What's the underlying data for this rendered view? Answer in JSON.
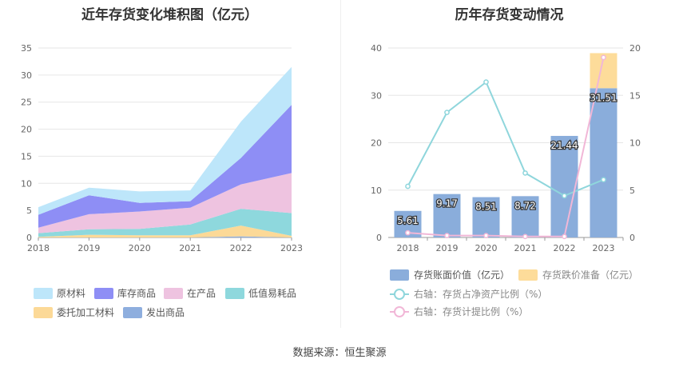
{
  "titles": {
    "left": "近年存货变化堆积图（亿元）",
    "right": "历年存货变动情况"
  },
  "source": "数据来源：恒生聚源",
  "chart_data": [
    {
      "type": "area",
      "stacked": true,
      "title": "近年存货变化堆积图（亿元）",
      "x": [
        "2018",
        "2019",
        "2020",
        "2021",
        "2022",
        "2023"
      ],
      "ylim": [
        0,
        35
      ],
      "yticks": [
        0,
        5,
        10,
        15,
        20,
        25,
        30,
        35
      ],
      "grid": true,
      "legend_position": "bottom",
      "series": [
        {
          "name": "发出商品",
          "color": "#8eaede",
          "values": [
            0,
            0,
            0,
            0,
            0.2,
            0
          ]
        },
        {
          "name": "委托加工材料",
          "color": "#fcd997",
          "values": [
            0.1,
            0.5,
            0.4,
            0.4,
            2.0,
            0.3
          ]
        },
        {
          "name": "低值易耗品",
          "color": "#8ed8dd",
          "values": [
            0.7,
            1.0,
            1.2,
            2.0,
            3.1,
            4.2
          ]
        },
        {
          "name": "在产品",
          "color": "#eec3e0",
          "values": [
            1.0,
            2.8,
            3.2,
            3.1,
            4.5,
            7.4
          ]
        },
        {
          "name": "库存商品",
          "color": "#8e8ef5",
          "values": [
            2.4,
            3.5,
            1.6,
            1.2,
            4.9,
            12.6
          ]
        },
        {
          "name": "原材料",
          "color": "#bde6fa",
          "values": [
            1.4,
            1.4,
            2.1,
            2.0,
            6.7,
            7.0
          ]
        }
      ]
    },
    {
      "type": "bar",
      "stacked": true,
      "title": "历年存货变动情况",
      "categories": [
        "2018",
        "2019",
        "2020",
        "2021",
        "2022",
        "2023"
      ],
      "ylim": [
        0,
        40
      ],
      "yticks": [
        0,
        10,
        20,
        30,
        40
      ],
      "y2lim": [
        0,
        20
      ],
      "y2ticks": [
        0,
        5,
        10,
        15,
        20
      ],
      "grid": true,
      "legend_position": "bottom",
      "series": [
        {
          "name": "存货账面价值（亿元）",
          "color": "#8aaddb",
          "axis": "left",
          "values": [
            5.61,
            9.17,
            8.51,
            8.72,
            21.44,
            31.51
          ],
          "data_labels": [
            "5.61",
            "9.17",
            "8.51",
            "8.72",
            "21.44",
            "31.51"
          ]
        },
        {
          "name": "存货跌价准备（亿元）",
          "color": "#fddc9a",
          "axis": "left",
          "values": [
            0,
            0,
            0,
            0,
            0,
            7.4
          ]
        },
        {
          "name": "右轴：存货占净资产比例（%）",
          "type": "line",
          "color": "#8fd6dc",
          "axis": "right",
          "values": [
            5.4,
            13.2,
            16.4,
            6.8,
            4.4,
            6.1
          ]
        },
        {
          "name": "右轴：存货计提比例（%）",
          "type": "line",
          "color": "#f1b7d7",
          "axis": "right",
          "values": [
            0.5,
            0.2,
            0.2,
            0.1,
            0.1,
            19.0
          ]
        }
      ]
    }
  ]
}
